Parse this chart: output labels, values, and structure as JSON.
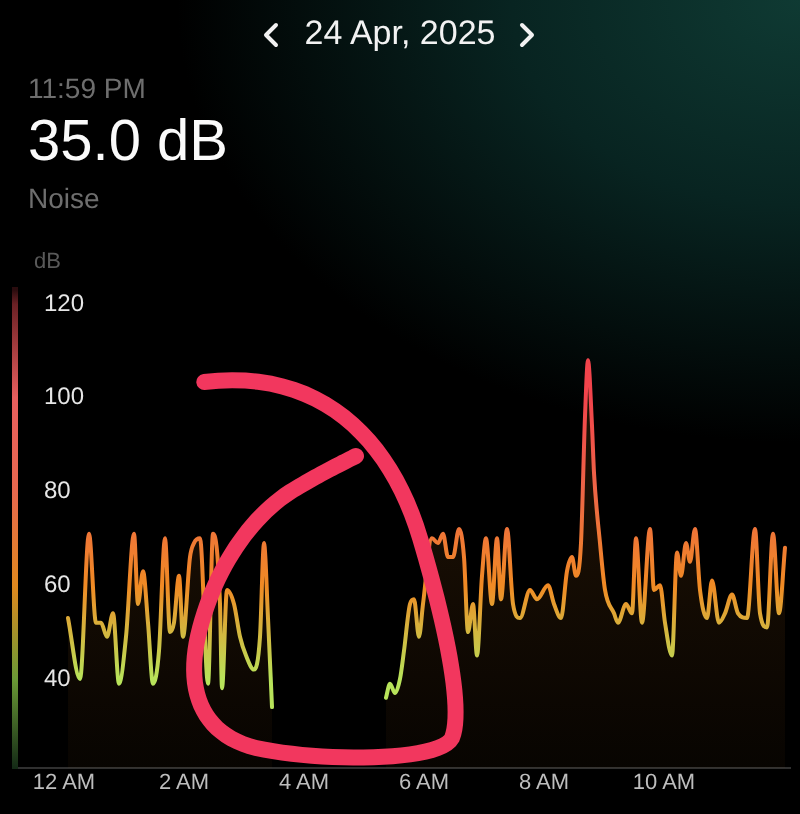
{
  "chart_data": {
    "type": "area",
    "title": "24 Apr, 2025",
    "ylabel": "dB",
    "annotations": [
      "11:59 PM",
      "35.0 dB",
      "Noise"
    ],
    "x": [
      "2025-04-24T00:04",
      "2025-04-24T00:16",
      "2025-04-24T00:25",
      "2025-04-24T00:32",
      "2025-04-24T00:37",
      "2025-04-24T00:43",
      "2025-04-24T00:49",
      "2025-04-24T00:55",
      "2025-04-24T01:02",
      "2025-04-24T01:10",
      "2025-04-24T01:14",
      "2025-04-24T01:19",
      "2025-04-24T01:24",
      "2025-04-24T01:29",
      "2025-04-24T01:35",
      "2025-04-24T01:41",
      "2025-04-24T01:46",
      "2025-04-24T01:50",
      "2025-04-24T01:55",
      "2025-04-24T01:59",
      "2025-04-24T02:06",
      "2025-04-24T02:10",
      "2025-04-24T02:16",
      "2025-04-24T02:24",
      "2025-04-24T02:29",
      "2025-04-24T02:36",
      "2025-04-24T02:38",
      "2025-04-24T02:43",
      "2025-04-24T02:50",
      "2025-04-24T02:56",
      "2025-04-24T03:02",
      "2025-04-24T03:10",
      "2025-04-24T03:16",
      "2025-04-24T03:20",
      "2025-04-24T03:24",
      "2025-04-24T03:28",
      "2025-04-24T04:24",
      "2025-04-24T05:22",
      "2025-04-24T05:26",
      "2025-04-24T05:31",
      "2025-04-24T05:36",
      "2025-04-24T05:40",
      "2025-04-24T05:46",
      "2025-04-24T05:50",
      "2025-04-24T05:55",
      "2025-04-24T05:59",
      "2025-04-24T06:08",
      "2025-04-24T06:14",
      "2025-04-24T06:19",
      "2025-04-24T06:24",
      "2025-04-24T06:29",
      "2025-04-24T06:35",
      "2025-04-24T06:40",
      "2025-04-24T06:44",
      "2025-04-24T06:49",
      "2025-04-24T06:53",
      "2025-04-24T06:58",
      "2025-04-24T07:02",
      "2025-04-24T07:08",
      "2025-04-24T07:13",
      "2025-04-24T07:17",
      "2025-04-24T07:23",
      "2025-04-24T07:29",
      "2025-04-24T07:36",
      "2025-04-24T07:46",
      "2025-04-24T07:53",
      "2025-04-24T08:04",
      "2025-04-24T08:10",
      "2025-04-24T08:17",
      "2025-04-24T08:23",
      "2025-04-24T08:28",
      "2025-04-24T08:32",
      "2025-04-24T08:37",
      "2025-04-24T08:41",
      "2025-04-24T08:44",
      "2025-04-24T08:48",
      "2025-04-24T08:50",
      "2025-04-24T08:56",
      "2025-04-24T09:01",
      "2025-04-24T09:10",
      "2025-04-24T09:14",
      "2025-04-24T09:22",
      "2025-04-24T09:28",
      "2025-04-24T09:32",
      "2025-04-24T09:38",
      "2025-04-24T09:46",
      "2025-04-24T09:50",
      "2025-04-24T09:56",
      "2025-04-24T10:01",
      "2025-04-24T10:08",
      "2025-04-24T10:13",
      "2025-04-24T10:17",
      "2025-04-24T10:22",
      "2025-04-24T10:26",
      "2025-04-24T10:31",
      "2025-04-24T10:36",
      "2025-04-24T10:43",
      "2025-04-24T10:48",
      "2025-04-24T10:55",
      "2025-04-24T11:01",
      "2025-04-24T11:08",
      "2025-04-24T11:14",
      "2025-04-24T11:23",
      "2025-04-24T11:31",
      "2025-04-24T11:36",
      "2025-04-24T11:43",
      "2025-04-24T11:49",
      "2025-04-24T11:55",
      "2025-04-24T12:01"
    ],
    "values": [
      53,
      40,
      71,
      52,
      52,
      49,
      54,
      39,
      49,
      71,
      56,
      63,
      52,
      39,
      46,
      70,
      50,
      52,
      62,
      49,
      66,
      69,
      70,
      39,
      71,
      56,
      38,
      59,
      56,
      49,
      45,
      42,
      49,
      69,
      53,
      34,
      null,
      36,
      39,
      37,
      40,
      46,
      56,
      57,
      49,
      56,
      70,
      69,
      71,
      66,
      66,
      72,
      66,
      50,
      56,
      45,
      62,
      70,
      56,
      70,
      57,
      72,
      56,
      53,
      59,
      57,
      60,
      56,
      53,
      63,
      66,
      62,
      69,
      96,
      108,
      94,
      84,
      69,
      59,
      54,
      52,
      56,
      54,
      70,
      52,
      72,
      59,
      60,
      52,
      45,
      67,
      62,
      69,
      65,
      72,
      59,
      53,
      61,
      52,
      54,
      58,
      54,
      53,
      72,
      54,
      51,
      71,
      54,
      68
    ],
    "color": "#f08a24",
    "xlim": [
      "2025-04-23T23:11",
      "2025-04-24T12:06"
    ],
    "xticks": [
      {
        "value": "2025-04-24T00:00",
        "label": "12 AM"
      },
      {
        "value": "2025-04-24T02:00",
        "label": "2 AM"
      },
      {
        "value": "2025-04-24T04:00",
        "label": "4 AM"
      },
      {
        "value": "2025-04-24T06:00",
        "label": "6 AM"
      },
      {
        "value": "2025-04-24T08:00",
        "label": "8 AM"
      },
      {
        "value": "2025-04-24T10:00",
        "label": "10 AM"
      }
    ],
    "ylim": [
      21,
      123
    ],
    "yticks": [
      40,
      60,
      80,
      100,
      120
    ]
  }
}
